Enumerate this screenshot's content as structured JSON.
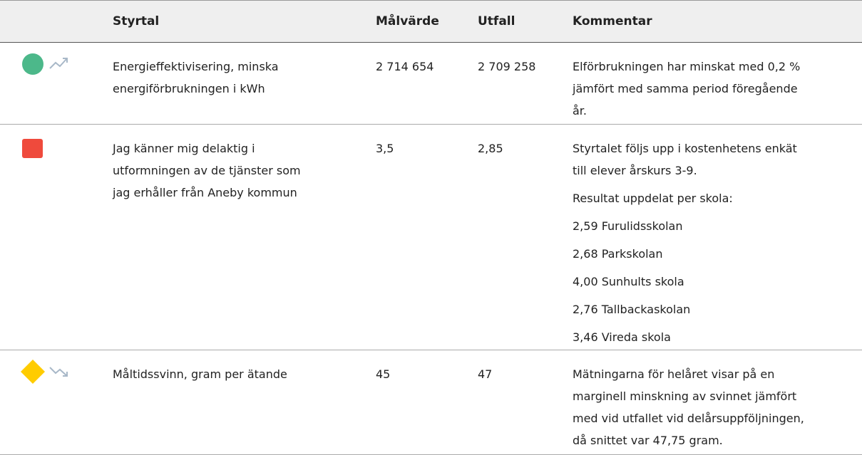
{
  "table": {
    "header": [
      "Styrtal",
      "Målvärde",
      "Utfall",
      "Kommentar"
    ],
    "rows": [
      {
        "styrtal": [
          "Energieffektivisering, minska",
          "energiförbrukningen i kWh"
        ],
        "malvarde": "2 714 654",
        "utfall": "2 709 258",
        "kommentar": [
          [
            "Elförbrukningen har minskat med 0,2 %",
            "jämfört med samma period föregående",
            "år."
          ]
        ]
      },
      {
        "styrtal": [
          "Jag känner mig delaktig i",
          "utformningen av de tjänster som",
          "jag erhåller från Aneby kommun"
        ],
        "malvarde": "3,5",
        "utfall": "2,85",
        "kommentar": [
          [
            "Styrtalet följs upp i kostenhetens enkät",
            "till elever årskurs 3-9."
          ],
          [
            "Resultat uppdelat per skola:"
          ],
          [
            "2,59 Furulidsskolan"
          ],
          [
            "2,68 Parkskolan"
          ],
          [
            "4,00 Sunhults skola"
          ],
          [
            "2,76 Tallbackaskolan"
          ],
          [
            "3,46 Vireda skola"
          ]
        ]
      },
      {
        "styrtal": [
          "Måltidssvinn, gram per ätande"
        ],
        "malvarde": "45",
        "utfall": "47",
        "kommentar": [
          [
            "Mätningarna för helåret visar på en",
            "marginell minskning av svinnet jämfört",
            "med vid utfallet vid delårsuppföljningen,",
            "då snittet var 47,75 gram."
          ]
        ]
      }
    ]
  }
}
